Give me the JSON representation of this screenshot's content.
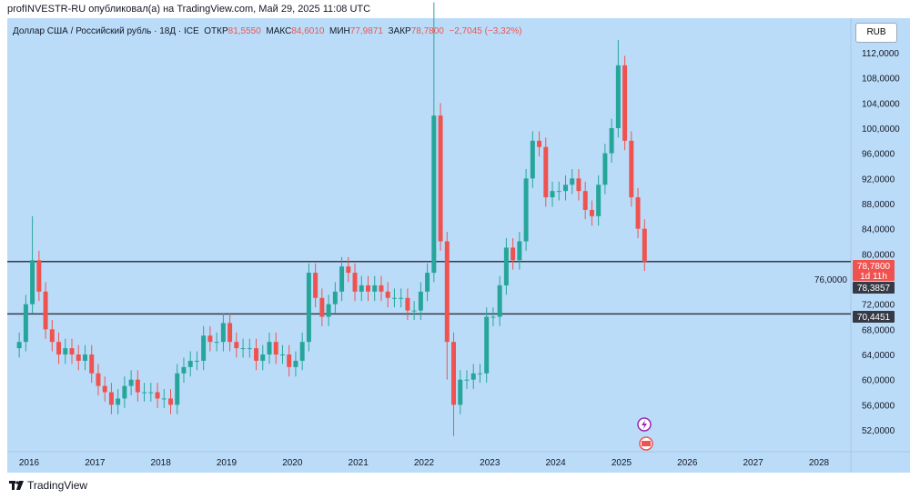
{
  "publish_line": "profINVESTR-RU опубликовал(а) на TradingView.com, Май 29, 2025 11:08 UTC",
  "legend": {
    "symbol": "Доллар США / Российский рубль · 18Д · ICE",
    "open_label": "ОТКР",
    "open": "81,5550",
    "high_label": "МАКС",
    "high": "84,6010",
    "low_label": "МИН",
    "low": "77,9871",
    "close_label": "ЗАКР",
    "close": "78,7800",
    "change": "−2,7045 (−3,32%)"
  },
  "currency_button": "RUB",
  "footer_brand": "TradingView",
  "price_labels": {
    "last": "78,7800",
    "countdown": "1d 11h",
    "prev": "78,3857",
    "level": "70,4451"
  },
  "colors": {
    "up": "#26a69a",
    "down": "#ef5350",
    "line": "#363a45"
  },
  "chart_data": {
    "type": "candlestick",
    "title": "Доллар США / Российский рубль · 18Д · ICE",
    "ylim": [
      49,
      118
    ],
    "y_ticks": [
      "52,0000",
      "56,0000",
      "60,0000",
      "64,0000",
      "68,0000",
      "72,0000",
      "76,0000",
      "80,0000",
      "84,0000",
      "88,0000",
      "92,0000",
      "96,0000",
      "100,0000",
      "104,0000",
      "108,0000",
      "112,0000"
    ],
    "y_tick_values": [
      52,
      56,
      60,
      64,
      68,
      72,
      76,
      80,
      84,
      88,
      92,
      96,
      100,
      104,
      108,
      112
    ],
    "x_ticks": [
      "2016",
      "2017",
      "2018",
      "2019",
      "2020",
      "2021",
      "2022",
      "2023",
      "2024",
      "2025",
      "2026",
      "2027",
      "2028"
    ],
    "start_year": 2015.85,
    "step_years": 0.1,
    "first_open": 65,
    "closes": [
      66,
      72,
      79,
      74,
      68,
      66,
      64,
      65,
      64,
      63,
      64,
      61,
      59,
      58,
      56,
      57,
      59,
      60,
      58,
      58,
      58,
      57,
      57,
      56,
      61,
      62,
      63,
      63,
      67,
      66,
      66,
      69,
      66,
      65,
      65,
      65,
      63,
      64,
      66,
      64,
      64,
      62,
      63,
      66,
      77,
      73,
      70,
      72,
      74,
      78,
      77,
      74,
      75,
      74,
      75,
      74,
      73,
      73,
      73,
      71,
      71,
      74,
      77,
      102,
      82,
      66,
      56,
      60,
      60,
      61,
      61,
      70,
      70,
      75,
      81,
      79,
      82,
      92,
      98,
      97,
      89,
      90,
      90,
      91,
      92,
      90,
      87,
      86,
      91,
      96,
      100,
      110,
      98,
      89,
      84,
      78.78
    ],
    "high_overrides": {
      "2": 86,
      "63": 120,
      "91": 114,
      "64": 104
    },
    "low_overrides": {
      "66": 51,
      "65": 60
    },
    "horizontal_levels": [
      78.78,
      70.4451
    ]
  }
}
